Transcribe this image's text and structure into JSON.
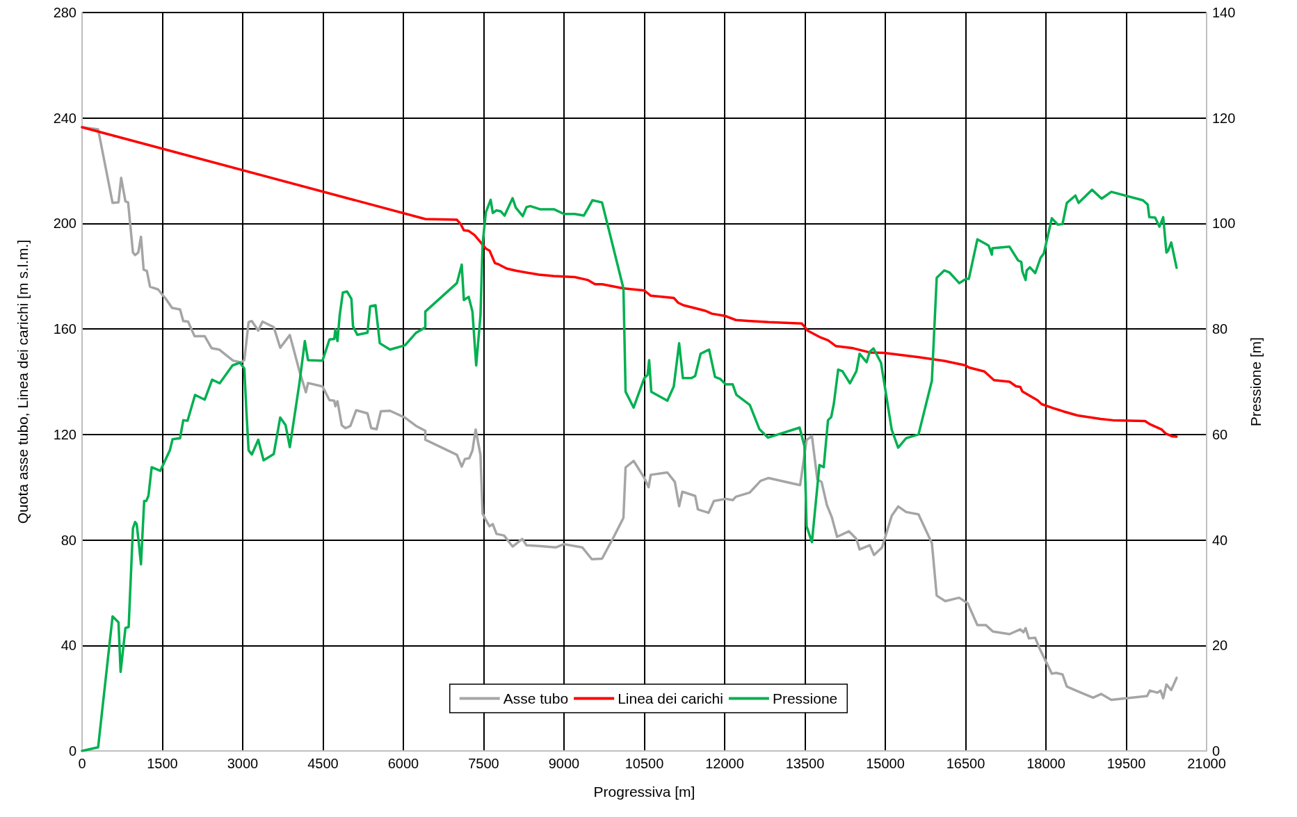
{
  "chart_data": {
    "type": "line",
    "xlabel": "Progressiva [m]",
    "ylabel": "Quota asse tubo, Linea dei carichi [m s.l.m.]",
    "y2label": "Pressione [m]",
    "xlim": [
      0,
      21000
    ],
    "xticks": [
      0,
      1500,
      3000,
      4500,
      6000,
      7500,
      9000,
      10500,
      12000,
      13500,
      15000,
      16500,
      18000,
      19500,
      21000
    ],
    "ylim": [
      0,
      280
    ],
    "yticks": [
      0,
      40,
      80,
      120,
      160,
      200,
      240,
      280
    ],
    "y2lim": [
      0,
      140
    ],
    "y2ticks": [
      0,
      20,
      40,
      60,
      80,
      100,
      120,
      140
    ],
    "grid": true,
    "legend": "bottom",
    "marker": "none",
    "line_style": "solid",
    "series": [
      {
        "name": "Asse tubo",
        "color": "#a5a5a5",
        "x": [
          0,
          300,
          570,
          680,
          730,
          810,
          860,
          950,
          990,
          1050,
          1100,
          1150,
          1210,
          1270,
          1420,
          1580,
          1680,
          1830,
          1890,
          1980,
          2100,
          2290,
          2420,
          2560,
          2820,
          2970,
          3030,
          3110,
          3170,
          3290,
          3370,
          3580,
          3700,
          3880,
          4060,
          4180,
          4220,
          4490,
          4620,
          4710,
          4730,
          4770,
          4850,
          4920,
          5010,
          5120,
          5330,
          5400,
          5500,
          5580,
          5750,
          6030,
          6240,
          6410,
          6410,
          7000,
          7090,
          7150,
          7230,
          7290,
          7350,
          7440,
          7480,
          7540,
          7610,
          7670,
          7740,
          7880,
          8040,
          8220,
          8300,
          8530,
          8850,
          9000,
          9340,
          9520,
          9710,
          9930,
          10110,
          10150,
          10300,
          10500,
          10580,
          10620,
          10930,
          11070,
          11150,
          11210,
          11450,
          11500,
          11700,
          11800,
          12020,
          12150,
          12210,
          12470,
          12670,
          12820,
          13410,
          13530,
          13630,
          13730,
          13810,
          13910,
          14000,
          14100,
          14320,
          14460,
          14520,
          14710,
          14790,
          14940,
          15120,
          15240,
          15390,
          15620,
          15870,
          15960,
          16120,
          16380,
          16540,
          16720,
          16880,
          17010,
          17320,
          17520,
          17580,
          17620,
          17680,
          17800,
          17880,
          18110,
          18190,
          18310,
          18390,
          18560,
          18880,
          19030,
          19220,
          19890,
          19940,
          20080,
          20140,
          20190,
          20250,
          20340,
          20440
        ],
        "values": [
          236.5,
          235.7,
          207.8,
          208,
          217.3,
          208.4,
          208,
          189,
          188,
          189,
          195,
          182.5,
          182,
          176,
          175,
          171,
          168,
          167.4,
          163,
          162.8,
          157.3,
          157.3,
          152.7,
          152.2,
          148,
          147.3,
          148.2,
          162.6,
          163,
          159.4,
          162.8,
          160.7,
          152.9,
          157.7,
          144,
          136,
          139.5,
          138.2,
          133,
          132.8,
          130.7,
          132.6,
          123.5,
          122.4,
          123.2,
          129.2,
          128,
          122.4,
          122,
          128.8,
          129,
          126.4,
          123.2,
          121.4,
          118,
          112.3,
          107.8,
          110.7,
          111,
          113.9,
          121.9,
          112.3,
          90,
          87.6,
          85.2,
          86,
          82.3,
          81.7,
          77.5,
          80.4,
          78,
          77.7,
          77.2,
          78.4,
          77.2,
          72.7,
          72.9,
          81.2,
          88.4,
          107.5,
          110,
          103.5,
          100,
          104.7,
          105.6,
          102,
          92.8,
          98.3,
          96.7,
          91.6,
          90.3,
          94.8,
          95.6,
          95.1,
          96.4,
          98,
          102.4,
          103.5,
          100.8,
          117.9,
          119.5,
          103,
          102,
          93.2,
          88.7,
          81.2,
          83.3,
          80.4,
          76.4,
          78,
          74.3,
          77.2,
          89.2,
          92.7,
          90.6,
          89.7,
          78.8,
          58.9,
          56.8,
          58.1,
          56,
          47.7,
          47.7,
          45.3,
          44.3,
          46.1,
          45,
          46.6,
          42.7,
          42.9,
          38.9,
          29.3,
          29.6,
          29,
          24.4,
          22.9,
          20.2,
          21.6,
          19.4,
          20.8,
          22.9,
          22.1,
          22.9,
          20,
          25.2,
          23.1,
          27.7
        ]
      },
      {
        "name": "Linea dei carichi",
        "color": "#ff0000",
        "x": [
          0,
          6410,
          7000,
          7070,
          7130,
          7220,
          7330,
          7540,
          7610,
          7710,
          7780,
          7930,
          8100,
          8530,
          8810,
          9200,
          9440,
          9580,
          9710,
          10110,
          10500,
          10620,
          11050,
          11130,
          11230,
          11450,
          11640,
          11760,
          12000,
          12210,
          12430,
          12820,
          13440,
          13550,
          13770,
          13930,
          14080,
          14400,
          14710,
          15000,
          15630,
          16100,
          16500,
          16560,
          16850,
          17030,
          17320,
          17440,
          17520,
          17560,
          17840,
          17920,
          18150,
          18350,
          18590,
          19020,
          19250,
          19850,
          19950,
          20160,
          20240,
          20360,
          20440
        ],
        "values": [
          236.5,
          201.7,
          201.4,
          199.8,
          197.4,
          197.2,
          195.6,
          190.5,
          189.7,
          185,
          184.5,
          182.9,
          182.1,
          180.6,
          180.1,
          179.7,
          178.6,
          177,
          177,
          175.4,
          174.6,
          172.6,
          171.8,
          170,
          169,
          167.9,
          166.9,
          165.8,
          165,
          163.4,
          163.1,
          162.6,
          162.1,
          159.4,
          157,
          155.7,
          153.5,
          152.7,
          151.1,
          150.9,
          149.3,
          147.9,
          146.2,
          145.4,
          143.9,
          140.6,
          140,
          138.3,
          138,
          136.3,
          133,
          131.5,
          129.9,
          128.6,
          127.2,
          125.9,
          125.4,
          125.1,
          123.8,
          121.9,
          120.3,
          119.3,
          119.2
        ]
      },
      {
        "name": "Pressione",
        "color": "#00b050",
        "axis": "y2",
        "x": [
          0,
          300,
          570,
          680,
          720,
          810,
          870,
          950,
          990,
          1020,
          1060,
          1100,
          1160,
          1200,
          1240,
          1300,
          1460,
          1640,
          1690,
          1830,
          1890,
          1970,
          2110,
          2290,
          2430,
          2570,
          2810,
          2950,
          3030,
          3070,
          3110,
          3170,
          3290,
          3390,
          3580,
          3700,
          3800,
          3880,
          4060,
          4160,
          4220,
          4490,
          4620,
          4710,
          4730,
          4770,
          4810,
          4870,
          4950,
          5030,
          5060,
          5140,
          5330,
          5380,
          5480,
          5560,
          5750,
          6030,
          6240,
          6410,
          6410,
          7000,
          7090,
          7130,
          7220,
          7290,
          7360,
          7440,
          7480,
          7540,
          7630,
          7670,
          7740,
          7820,
          7890,
          8040,
          8100,
          8230,
          8300,
          8370,
          8550,
          8810,
          9000,
          9200,
          9370,
          9450,
          9530,
          9710,
          10110,
          10150,
          10300,
          10500,
          10560,
          10590,
          10630,
          10930,
          11050,
          11150,
          11220,
          11380,
          11450,
          11550,
          11710,
          11820,
          11920,
          12020,
          12150,
          12220,
          12470,
          12650,
          12810,
          13400,
          13490,
          13530,
          13630,
          13770,
          13850,
          13930,
          13990,
          14040,
          14120,
          14200,
          14340,
          14460,
          14520,
          14650,
          14710,
          14780,
          14920,
          15120,
          15240,
          15390,
          15620,
          15870,
          15960,
          16100,
          16200,
          16380,
          16510,
          16560,
          16720,
          16880,
          16930,
          16990,
          17000,
          17320,
          17480,
          17540,
          17560,
          17620,
          17640,
          17700,
          17800,
          17900,
          17960,
          18110,
          18220,
          18310,
          18390,
          18550,
          18610,
          18860,
          19040,
          19220,
          19810,
          19900,
          19930,
          20040,
          20120,
          20190,
          20250,
          20280,
          20340,
          20440
        ],
        "values": [
          0,
          0.7,
          25.5,
          24.4,
          15,
          23.3,
          23.5,
          42.2,
          43.4,
          43,
          39.4,
          35.4,
          47.4,
          47.4,
          48.4,
          53.8,
          53.1,
          57,
          59.1,
          59.3,
          62.7,
          62.6,
          67.5,
          66.6,
          70.4,
          69.7,
          73.1,
          73.6,
          72.5,
          64.2,
          57,
          56.2,
          59,
          55.1,
          56.3,
          63.2,
          61.8,
          57.6,
          69.8,
          77.7,
          74.1,
          74,
          78,
          78.1,
          79.9,
          77.7,
          82.5,
          86.9,
          87.1,
          85.7,
          80.5,
          78.9,
          79.3,
          84.3,
          84.5,
          77.3,
          76.1,
          76.9,
          79.3,
          80.3,
          83.3,
          88.7,
          92.2,
          85.5,
          86.1,
          83.3,
          73.1,
          82.5,
          96.1,
          102.1,
          104.5,
          102,
          102.5,
          102.3,
          101.5,
          104.8,
          103,
          101.4,
          103.1,
          103.3,
          102.7,
          102.7,
          101.8,
          101.8,
          101.5,
          102.9,
          104.4,
          104,
          87.7,
          68.1,
          65.1,
          70.7,
          71.3,
          74.1,
          68.1,
          66.4,
          69.1,
          77.3,
          70.7,
          70.7,
          71.1,
          75.3,
          76.1,
          70.9,
          70.5,
          69.5,
          69.5,
          67.5,
          65.6,
          61,
          59.4,
          61.3,
          57.8,
          42.6,
          39.6,
          54.2,
          53.8,
          62.7,
          63.3,
          65.9,
          72.3,
          72,
          69.7,
          72,
          75.3,
          73.7,
          75.7,
          76.3,
          73.6,
          60.9,
          57.5,
          59.3,
          60,
          70.2,
          89.7,
          91.1,
          90.7,
          88.7,
          89.5,
          89.5,
          97,
          96.1,
          95.8,
          94.1,
          95.3,
          95.6,
          93,
          92.7,
          90.9,
          89.3,
          91.1,
          91.7,
          90.6,
          93.5,
          94.3,
          101,
          99.8,
          99.9,
          103.9,
          105.3,
          103.9,
          106.4,
          104.7,
          106,
          104.4,
          103.6,
          101.2,
          101.1,
          99.4,
          101.2,
          94.5,
          94.8,
          96.4,
          91.6
        ]
      }
    ]
  }
}
